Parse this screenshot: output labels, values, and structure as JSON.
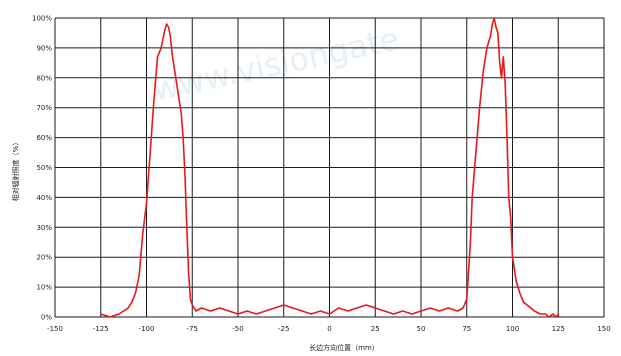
{
  "chart_data": {
    "type": "line",
    "title": "",
    "xlabel": "长边方向位置（mm）",
    "ylabel": "相对辐射照度（%）",
    "xlim": [
      -150,
      150
    ],
    "ylim": [
      0,
      100
    ],
    "x_ticks": [
      -150,
      -125,
      -100,
      -75,
      -50,
      -25,
      0,
      25,
      50,
      75,
      100,
      125,
      150
    ],
    "x_tick_labels": [
      "-150",
      "-125",
      "-100",
      "-75",
      "-50",
      "-25",
      "0",
      "25",
      "50",
      "75",
      "100",
      "125",
      "150"
    ],
    "y_ticks": [
      0,
      10,
      20,
      30,
      40,
      50,
      60,
      70,
      80,
      90,
      100
    ],
    "y_tick_labels": [
      "0%",
      "10%",
      "20%",
      "30%",
      "40%",
      "50%",
      "60%",
      "70%",
      "80%",
      "90%",
      "100%"
    ],
    "grid": true,
    "line_color": "#e8191b",
    "watermark": "www.visiongate",
    "series": [
      {
        "x": [
          -125,
          -120,
          -115,
          -110,
          -108,
          -106,
          -104,
          -102,
          -100,
          -98,
          -96,
          -94,
          -92,
          -90,
          -89,
          -88,
          -87,
          -86,
          -85,
          -84,
          -83,
          -82,
          -81,
          -80,
          -79,
          -78,
          -77,
          -76,
          -75,
          -73,
          -70,
          -65,
          -60,
          -55,
          -50,
          -45,
          -40,
          -35,
          -30,
          -25,
          -20,
          -15,
          -10,
          -5,
          0,
          5,
          10,
          15,
          20,
          25,
          30,
          35,
          40,
          45,
          50,
          55,
          60,
          65,
          70,
          73,
          75,
          77,
          78,
          80,
          82,
          84,
          86,
          88,
          89,
          90,
          91,
          92,
          93,
          94,
          95,
          96,
          97,
          98,
          99,
          100,
          102,
          104,
          106,
          108,
          110,
          112,
          115,
          118,
          120,
          122,
          124,
          125
        ],
        "y": [
          1,
          0,
          1,
          3,
          5,
          8,
          14,
          28,
          38,
          55,
          72,
          87,
          90,
          96,
          98,
          97,
          94,
          88,
          84,
          80,
          76,
          72,
          68,
          60,
          48,
          30,
          15,
          6,
          4,
          2,
          3,
          2,
          3,
          2,
          1,
          2,
          1,
          2,
          3,
          4,
          3,
          2,
          1,
          2,
          1,
          3,
          2,
          3,
          4,
          3,
          2,
          1,
          2,
          1,
          2,
          3,
          2,
          3,
          2,
          3,
          6,
          25,
          40,
          55,
          70,
          82,
          90,
          94,
          98,
          100,
          97,
          95,
          85,
          80,
          87,
          78,
          60,
          40,
          33,
          20,
          12,
          8,
          5,
          4,
          3,
          2,
          1,
          1,
          0,
          1,
          0,
          1
        ]
      }
    ]
  }
}
